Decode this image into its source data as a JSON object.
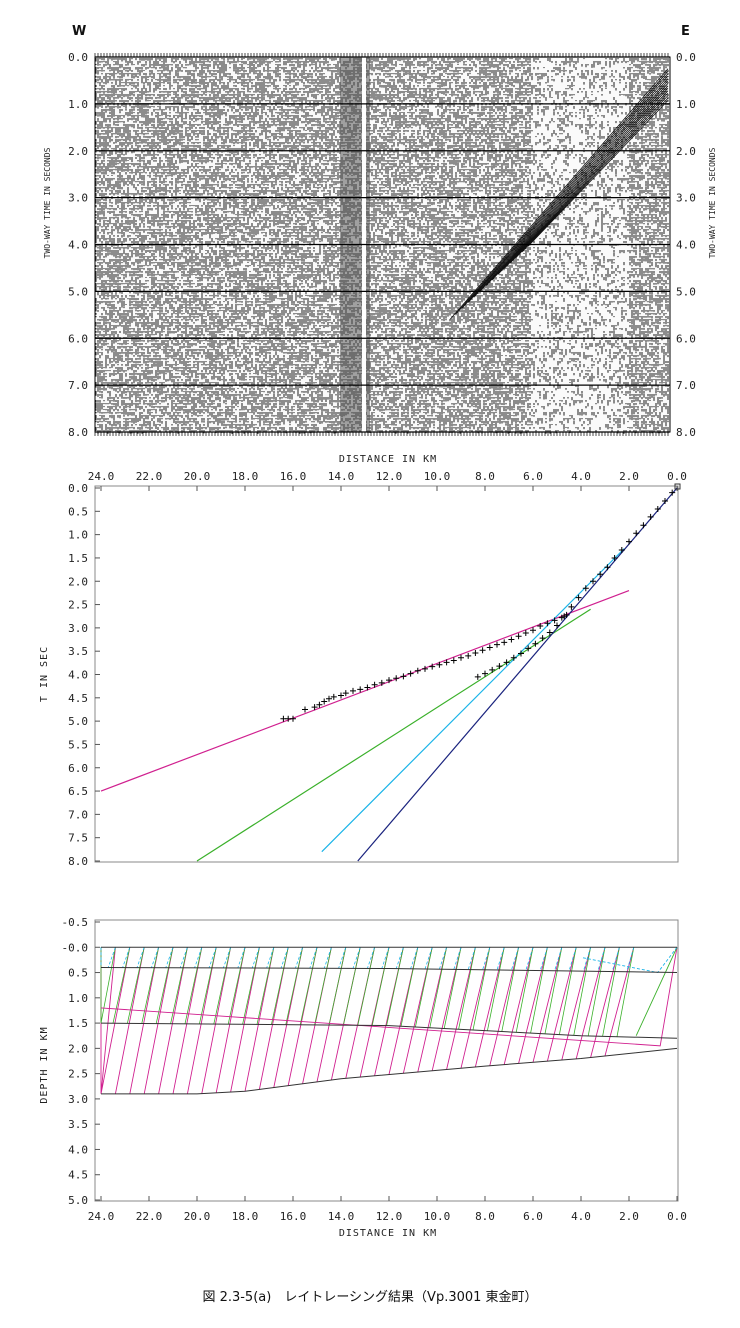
{
  "caption": "図 2.3-5(a)　レイトレーシング結果（Vp.3001 東金町）",
  "chart_data": [
    {
      "type": "seismic-section",
      "left_label": "W",
      "right_label": "E",
      "ylabel_left": "TWO-WAY TIME IN SECONDS",
      "ylabel_right": "TWO-WAY TIME IN SECONDS",
      "ylim": [
        0,
        8
      ],
      "y_ticks": [
        "0.0",
        "1.0",
        "2.0",
        "3.0",
        "4.0",
        "5.0",
        "6.0",
        "7.0",
        "8.0"
      ]
    },
    {
      "type": "scatter",
      "xlabel": "DISTANCE IN KM",
      "ylabel": "T IN SEC",
      "xlim": [
        24,
        0
      ],
      "ylim": [
        0,
        8
      ],
      "x_ticks": [
        "24.0",
        "22.0",
        "20.0",
        "18.0",
        "16.0",
        "14.0",
        "12.0",
        "10.0",
        "8.0",
        "6.0",
        "4.0",
        "2.0",
        "0.0"
      ],
      "y_ticks": [
        "0.0",
        "0.5",
        "1.0",
        "1.5",
        "2.0",
        "2.5",
        "3.0",
        "3.5",
        "4.0",
        "4.5",
        "5.0",
        "5.5",
        "6.0",
        "6.5",
        "7.0",
        "7.5",
        "8.0"
      ],
      "series": [
        {
          "color": "#d0208f",
          "kind": "line",
          "x": [
            24.0,
            2.0
          ],
          "y": [
            6.5,
            2.2
          ]
        },
        {
          "color": "#3ab02a",
          "kind": "line",
          "x": [
            20.0,
            3.6
          ],
          "y": [
            8.0,
            2.6
          ]
        },
        {
          "color": "#1ab4e8",
          "kind": "line",
          "x": [
            14.8,
            2.2
          ],
          "y": [
            7.8,
            1.3
          ]
        },
        {
          "color": "#1a237e",
          "kind": "line",
          "x": [
            13.3,
            0.0
          ],
          "y": [
            8.0,
            0.0
          ]
        },
        {
          "color": "#000000",
          "kind": "picks",
          "x": [
            16.4,
            16.2,
            16.0,
            15.5,
            15.1,
            14.9,
            14.7,
            14.5,
            14.3,
            14.0,
            13.8,
            13.5,
            13.2,
            12.9,
            12.6,
            12.3,
            12.0,
            11.7,
            11.4,
            11.1,
            10.8,
            10.5,
            10.2,
            9.9,
            9.6,
            9.3,
            9.0,
            8.7,
            8.4,
            8.1,
            7.8,
            7.5,
            7.2,
            6.9,
            6.6,
            6.3,
            6.0,
            5.7,
            5.4,
            5.1,
            4.8,
            4.6
          ],
          "y": [
            4.95,
            4.95,
            4.95,
            4.75,
            4.7,
            4.65,
            4.58,
            4.52,
            4.48,
            4.45,
            4.4,
            4.35,
            4.32,
            4.28,
            4.22,
            4.18,
            4.12,
            4.08,
            4.04,
            3.98,
            3.92,
            3.88,
            3.83,
            3.79,
            3.74,
            3.7,
            3.64,
            3.6,
            3.54,
            3.48,
            3.42,
            3.36,
            3.31,
            3.25,
            3.18,
            3.11,
            3.05,
            2.96,
            2.9,
            2.84,
            2.78,
            2.72
          ]
        },
        {
          "color": "#000000",
          "kind": "picks",
          "x": [
            8.3,
            8.0,
            7.7,
            7.4,
            7.1,
            6.8,
            6.5,
            6.2,
            5.9,
            5.6,
            5.3,
            5.0,
            4.7,
            4.4,
            4.1,
            3.8,
            3.5,
            3.2,
            2.9,
            2.6,
            2.3,
            2.0,
            1.7,
            1.4,
            1.1,
            0.8,
            0.5,
            0.2
          ],
          "y": [
            4.05,
            3.98,
            3.9,
            3.82,
            3.74,
            3.64,
            3.55,
            3.44,
            3.34,
            3.22,
            3.1,
            2.95,
            2.75,
            2.55,
            2.35,
            2.15,
            2.0,
            1.85,
            1.7,
            1.5,
            1.33,
            1.15,
            0.97,
            0.8,
            0.62,
            0.45,
            0.28,
            0.1
          ]
        }
      ]
    },
    {
      "type": "line",
      "xlabel": "DISTANCE IN KM",
      "ylabel": "DEPTH IN KM",
      "xlim": [
        24,
        0
      ],
      "ylim": [
        -0.5,
        5.0
      ],
      "x_ticks": [
        "24.0",
        "22.0",
        "20.0",
        "18.0",
        "16.0",
        "14.0",
        "12.0",
        "10.0",
        "8.0",
        "6.0",
        "4.0",
        "2.0",
        "0.0"
      ],
      "y_ticks": [
        "-0.5",
        "-0.0",
        "0.5",
        "1.0",
        "1.5",
        "2.0",
        "2.5",
        "3.0",
        "3.5",
        "4.0",
        "4.5",
        "5.0"
      ],
      "layers": [
        {
          "x": [
            24.0,
            0.0
          ],
          "y": [
            0.0,
            0.0
          ]
        },
        {
          "x": [
            24.0,
            12.0,
            0.0
          ],
          "y": [
            0.4,
            0.42,
            0.5
          ]
        },
        {
          "x": [
            24.0,
            12.0,
            4.0,
            0.0
          ],
          "y": [
            1.5,
            1.55,
            1.75,
            1.8
          ]
        },
        {
          "x": [
            24.0,
            20.0,
            18.0,
            14.0,
            8.0,
            4.0,
            0.0
          ],
          "y": [
            2.9,
            2.9,
            2.85,
            2.6,
            2.35,
            2.2,
            2.0
          ]
        }
      ],
      "ray_colors": [
        "#d0208f",
        "#3ab02a",
        "#1ab4e8"
      ]
    }
  ]
}
